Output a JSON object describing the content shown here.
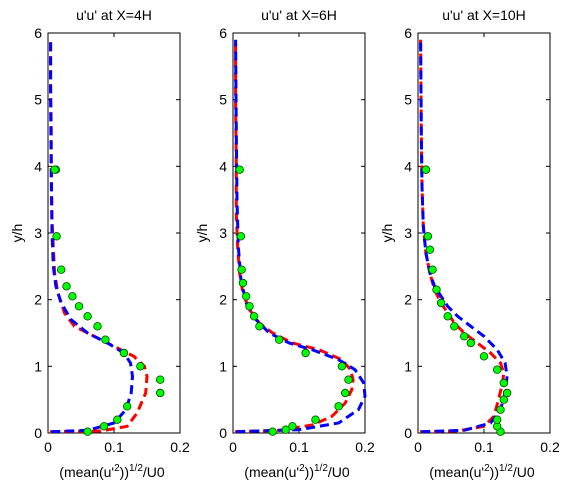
{
  "colors": {
    "series_red": "#ff0000",
    "series_blue": "#0000ff",
    "marker_fill": "#00ff00",
    "marker_edge": "#004400"
  },
  "chart_data": [
    {
      "type": "line",
      "title": "u'u' at X=4H",
      "xlabel_main": "(mean(u'",
      "xlabel_sup1": "2",
      "xlabel_mid": "))",
      "xlabel_sup2": "1/2",
      "xlabel_tail": "/U0",
      "ylabel": "y/h",
      "xlim": [
        0,
        0.2
      ],
      "ylim": [
        0,
        6
      ],
      "xticks": [
        "0",
        "0.1",
        "0.2"
      ],
      "yticks": [
        "0",
        "1",
        "2",
        "3",
        "4",
        "5",
        "6"
      ],
      "grid": false,
      "series": [
        {
          "style": "dashed",
          "color": "red",
          "x": [
            0.003,
            0.08,
            0.12,
            0.135,
            0.148,
            0.15,
            0.146,
            0.13,
            0.1,
            0.07,
            0.04,
            0.025,
            0.015,
            0.01,
            0.008,
            0.006,
            0.005,
            0.005,
            0.004,
            0.004
          ],
          "y": [
            0.02,
            0.03,
            0.1,
            0.3,
            0.6,
            0.85,
            1.0,
            1.15,
            1.3,
            1.45,
            1.6,
            1.8,
            2.1,
            2.4,
            2.8,
            3.2,
            4.0,
            4.5,
            5.2,
            5.9
          ]
        },
        {
          "style": "dashed",
          "color": "blue",
          "x": [
            0.005,
            0.06,
            0.1,
            0.118,
            0.126,
            0.128,
            0.125,
            0.115,
            0.09,
            0.06,
            0.035,
            0.02,
            0.012,
            0.008,
            0.006,
            0.005,
            0.004,
            0.004
          ],
          "y": [
            0.02,
            0.04,
            0.15,
            0.35,
            0.6,
            0.85,
            1.05,
            1.2,
            1.35,
            1.5,
            1.7,
            1.95,
            2.2,
            2.5,
            3.0,
            3.8,
            5.0,
            5.9
          ]
        },
        {
          "style": "markers",
          "color": "green",
          "x": [
            0.06,
            0.085,
            0.105,
            0.12,
            0.17,
            0.17,
            0.14,
            0.115,
            0.087,
            0.075,
            0.06,
            0.047,
            0.037,
            0.028,
            0.02,
            0.013,
            0.012,
            0.01
          ],
          "y": [
            0.02,
            0.1,
            0.2,
            0.4,
            0.6,
            0.8,
            1.0,
            1.2,
            1.4,
            1.6,
            1.75,
            1.9,
            2.05,
            2.2,
            2.45,
            2.95,
            3.95,
            3.95
          ]
        }
      ]
    },
    {
      "type": "line",
      "title": "u'u' at X=6H",
      "xlabel_main": "(mean(u'",
      "xlabel_sup1": "2",
      "xlabel_mid": "))",
      "xlabel_sup2": "1/2",
      "xlabel_tail": "/U0",
      "ylabel": "y/h",
      "xlim": [
        0,
        0.2
      ],
      "ylim": [
        0,
        6
      ],
      "xticks": [
        "0",
        "0.1",
        "0.2"
      ],
      "yticks": [
        "0",
        "1",
        "2",
        "3",
        "4",
        "5",
        "6"
      ],
      "grid": false,
      "series": [
        {
          "style": "dashed",
          "color": "red",
          "x": [
            0.003,
            0.07,
            0.12,
            0.15,
            0.17,
            0.18,
            0.182,
            0.178,
            0.165,
            0.13,
            0.09,
            0.06,
            0.04,
            0.025,
            0.015,
            0.01,
            0.007,
            0.005,
            0.005,
            0.004,
            0.004
          ],
          "y": [
            0.02,
            0.04,
            0.12,
            0.25,
            0.45,
            0.65,
            0.8,
            0.95,
            1.1,
            1.25,
            1.35,
            1.5,
            1.65,
            1.85,
            2.1,
            2.4,
            2.8,
            3.3,
            4.0,
            5.0,
            5.9
          ]
        },
        {
          "style": "dashed",
          "color": "blue",
          "x": [
            0.005,
            0.1,
            0.16,
            0.19,
            0.2,
            0.198,
            0.185,
            0.16,
            0.12,
            0.085,
            0.055,
            0.035,
            0.02,
            0.012,
            0.008,
            0.006,
            0.005,
            0.004
          ],
          "y": [
            0.02,
            0.05,
            0.15,
            0.35,
            0.55,
            0.75,
            0.95,
            1.1,
            1.25,
            1.35,
            1.5,
            1.7,
            1.95,
            2.3,
            2.8,
            3.5,
            4.5,
            5.9
          ]
        },
        {
          "style": "markers",
          "color": "green",
          "x": [
            0.06,
            0.08,
            0.09,
            0.125,
            0.16,
            0.17,
            0.175,
            0.165,
            0.11,
            0.07,
            0.04,
            0.032,
            0.025,
            0.02,
            0.015,
            0.013,
            0.012,
            0.01
          ],
          "y": [
            0.02,
            0.05,
            0.1,
            0.2,
            0.4,
            0.6,
            0.8,
            1.0,
            1.2,
            1.4,
            1.6,
            1.75,
            1.9,
            2.05,
            2.25,
            2.45,
            2.95,
            3.95
          ]
        }
      ]
    },
    {
      "type": "line",
      "title": "u'u' at X=10H",
      "xlabel_main": "(mean(u'",
      "xlabel_sup1": "2",
      "xlabel_mid": "))",
      "xlabel_sup2": "1/2",
      "xlabel_tail": "/U0",
      "ylabel": "y/h",
      "xlim": [
        0,
        0.2
      ],
      "ylim": [
        0,
        6
      ],
      "xticks": [
        "0",
        "0.1",
        "0.2"
      ],
      "yticks": [
        "0",
        "1",
        "2",
        "3",
        "4",
        "5",
        "6"
      ],
      "grid": false,
      "series": [
        {
          "style": "dashed",
          "color": "red",
          "x": [
            0.003,
            0.06,
            0.1,
            0.115,
            0.122,
            0.128,
            0.13,
            0.125,
            0.11,
            0.09,
            0.07,
            0.055,
            0.045,
            0.035,
            0.025,
            0.018,
            0.012,
            0.008,
            0.006,
            0.005,
            0.004
          ],
          "y": [
            0.02,
            0.03,
            0.1,
            0.25,
            0.5,
            0.75,
            0.9,
            1.05,
            1.2,
            1.35,
            1.5,
            1.65,
            1.8,
            1.95,
            2.15,
            2.4,
            2.7,
            3.1,
            3.7,
            4.5,
            5.9
          ]
        },
        {
          "style": "dashed",
          "color": "blue",
          "x": [
            0.005,
            0.07,
            0.11,
            0.125,
            0.132,
            0.135,
            0.132,
            0.12,
            0.1,
            0.08,
            0.06,
            0.045,
            0.035,
            0.025,
            0.018,
            0.012,
            0.008,
            0.006,
            0.005,
            0.004
          ],
          "y": [
            0.02,
            0.04,
            0.15,
            0.35,
            0.6,
            0.85,
            1.05,
            1.25,
            1.45,
            1.6,
            1.75,
            1.9,
            2.05,
            2.2,
            2.4,
            2.7,
            3.1,
            3.7,
            4.5,
            5.9
          ]
        },
        {
          "style": "markers",
          "color": "green",
          "x": [
            0.125,
            0.12,
            0.12,
            0.125,
            0.13,
            0.135,
            0.13,
            0.12,
            0.1,
            0.08,
            0.07,
            0.055,
            0.045,
            0.035,
            0.028,
            0.022,
            0.018,
            0.015,
            0.012,
            0.012
          ],
          "y": [
            0.02,
            0.1,
            0.2,
            0.35,
            0.5,
            0.6,
            0.75,
            0.95,
            1.15,
            1.35,
            1.45,
            1.6,
            1.75,
            1.95,
            2.15,
            2.45,
            2.75,
            2.95,
            3.95,
            3.95
          ]
        }
      ]
    }
  ]
}
